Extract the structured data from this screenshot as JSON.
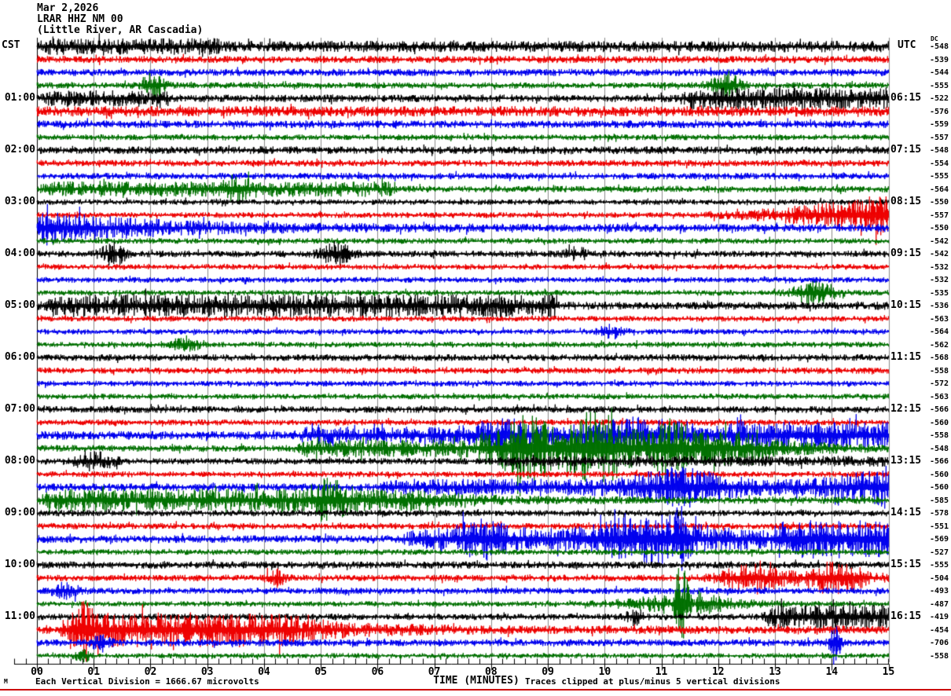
{
  "title": {
    "date": "Mar 2,2026",
    "station": "LRAR HHZ NM 00",
    "location": "(Little River, AR Cascadia)"
  },
  "left_axis": {
    "header": "CST",
    "labels": [
      {
        "text": "01:00",
        "row": 4
      },
      {
        "text": "02:00",
        "row": 8
      },
      {
        "text": "03:00",
        "row": 12
      },
      {
        "text": "04:00",
        "row": 16
      },
      {
        "text": "05:00",
        "row": 20
      },
      {
        "text": "06:00",
        "row": 24
      },
      {
        "text": "07:00",
        "row": 28
      },
      {
        "text": "08:00",
        "row": 32
      },
      {
        "text": "09:00",
        "row": 36
      },
      {
        "text": "10:00",
        "row": 40
      },
      {
        "text": "11:00",
        "row": 44
      }
    ]
  },
  "right_axis": {
    "header": "UTC",
    "dc_header": "DC",
    "labels": [
      {
        "text": "06:15",
        "row": 4
      },
      {
        "text": "07:15",
        "row": 8
      },
      {
        "text": "08:15",
        "row": 12
      },
      {
        "text": "09:15",
        "row": 16
      },
      {
        "text": "10:15",
        "row": 20
      },
      {
        "text": "11:15",
        "row": 24
      },
      {
        "text": "12:15",
        "row": 28
      },
      {
        "text": "13:15",
        "row": 32
      },
      {
        "text": "14:15",
        "row": 36
      },
      {
        "text": "15:15",
        "row": 40
      },
      {
        "text": "16:15",
        "row": 44
      }
    ]
  },
  "footer": {
    "scale_note": "Each Vertical Division = 1666.67 microvolts",
    "xlabel": "TIME (MINUTES)",
    "clip_note": "Traces clipped at plus/minus 5 vertical divisions",
    "watermark": "M"
  },
  "colors": {
    "trace_cycle": [
      "#000000",
      "#ee0000",
      "#0000ee",
      "#007000"
    ],
    "grid": "#8c8c8c",
    "axis": "#000000",
    "accent_line": "#cc0000",
    "text": "#000000",
    "background": "#ffffff"
  },
  "chart_data": {
    "type": "line",
    "subtype": "seismogram-helicorder",
    "title": "LRAR HHZ NM 00 (Little River, AR Cascadia) Mar 2,2026",
    "xlabel": "TIME (MINUTES)",
    "x_range": [
      0,
      15
    ],
    "x_ticks": [
      "00",
      "01",
      "02",
      "03",
      "04",
      "05",
      "06",
      "07",
      "08",
      "09",
      "10",
      "11",
      "12",
      "13",
      "14",
      "15"
    ],
    "minutes_per_row": 15,
    "row_count": 48,
    "start_time_cst": "00:00",
    "start_time_utc": "05:15",
    "clip_divisions": 5,
    "microvolts_per_division": 1666.67,
    "grid": true,
    "rows": [
      {
        "dc": -548,
        "amp": 5.0,
        "events": [
          {
            "k": "step",
            "a": 2.5,
            "s": 0,
            "e": 3.2
          }
        ]
      },
      {
        "dc": -539,
        "amp": 3.2,
        "events": []
      },
      {
        "dc": -544,
        "amp": 3.2,
        "events": []
      },
      {
        "dc": -555,
        "amp": 2.8,
        "events": [
          {
            "k": "burst",
            "a": 10,
            "s": 1.8,
            "e": 2.25
          },
          {
            "k": "burst",
            "a": 11,
            "s": 11.85,
            "e": 12.4
          }
        ]
      },
      {
        "dc": -522,
        "amp": 3.4,
        "events": [
          {
            "k": "step",
            "a": 4,
            "s": 0,
            "e": 2.3
          },
          {
            "k": "step",
            "a": 6.5,
            "s": 11.3,
            "e": 15
          }
        ]
      },
      {
        "dc": -576,
        "amp": 4.6,
        "events": []
      },
      {
        "dc": -559,
        "amp": 3.4,
        "events": []
      },
      {
        "dc": -557,
        "amp": 2.6,
        "events": []
      },
      {
        "dc": -548,
        "amp": 3.4,
        "events": []
      },
      {
        "dc": -554,
        "amp": 2.9,
        "events": []
      },
      {
        "dc": -555,
        "amp": 2.9,
        "events": []
      },
      {
        "dc": -564,
        "amp": 2.9,
        "events": [
          {
            "k": "step",
            "a": 4,
            "s": 0,
            "e": 6.3
          },
          {
            "k": "burst",
            "a": 8,
            "s": 3.25,
            "e": 3.75
          }
        ]
      },
      {
        "dc": -550,
        "amp": 2.5,
        "events": []
      },
      {
        "dc": -557,
        "amp": 2.5,
        "events": [
          {
            "k": "grow",
            "a": 17,
            "s": 11,
            "e": 15
          }
        ]
      },
      {
        "dc": -550,
        "amp": 3.6,
        "events": [
          {
            "k": "decay",
            "a": 13,
            "s": 0,
            "e": 5
          }
        ]
      },
      {
        "dc": -542,
        "amp": 2.5,
        "events": []
      },
      {
        "dc": -542,
        "amp": 2.9,
        "events": [
          {
            "k": "burst",
            "a": 9,
            "s": 1.1,
            "e": 1.6
          },
          {
            "k": "burst",
            "a": 10,
            "s": 4.95,
            "e": 5.55
          },
          {
            "k": "burst",
            "a": 5,
            "s": 9.3,
            "e": 9.7
          }
        ]
      },
      {
        "dc": -532,
        "amp": 2.5,
        "events": []
      },
      {
        "dc": -532,
        "amp": 2.5,
        "events": []
      },
      {
        "dc": -535,
        "amp": 2.5,
        "events": [
          {
            "k": "burst",
            "a": 10,
            "s": 13.3,
            "e": 14.1
          }
        ]
      },
      {
        "dc": -536,
        "amp": 3.6,
        "events": [
          {
            "k": "step",
            "a": 6.5,
            "s": 0,
            "e": 9.2
          }
        ]
      },
      {
        "dc": -563,
        "amp": 2.5,
        "events": []
      },
      {
        "dc": -564,
        "amp": 2.5,
        "events": [
          {
            "k": "burst",
            "a": 5,
            "s": 9.85,
            "e": 10.35
          }
        ]
      },
      {
        "dc": -562,
        "amp": 2.5,
        "events": [
          {
            "k": "burst",
            "a": 7,
            "s": 2.35,
            "e": 2.85
          }
        ]
      },
      {
        "dc": -568,
        "amp": 3.0,
        "events": []
      },
      {
        "dc": -558,
        "amp": 2.8,
        "events": []
      },
      {
        "dc": -572,
        "amp": 2.5,
        "events": []
      },
      {
        "dc": -563,
        "amp": 2.5,
        "events": []
      },
      {
        "dc": -566,
        "amp": 3.0,
        "events": []
      },
      {
        "dc": -560,
        "amp": 2.6,
        "events": []
      },
      {
        "dc": -558,
        "amp": 3.8,
        "events": [
          {
            "k": "step",
            "a": 4,
            "s": 4.5,
            "e": 15
          },
          {
            "k": "burst",
            "a": 9,
            "s": 7.6,
            "e": 8.8
          },
          {
            "k": "burst",
            "a": 9,
            "s": 9.6,
            "e": 11.6
          },
          {
            "k": "step",
            "a": 5,
            "s": 12,
            "e": 15
          }
        ]
      },
      {
        "dc": -548,
        "amp": 3.0,
        "events": [
          {
            "k": "step",
            "a": 5,
            "s": 4.5,
            "e": 7.6
          },
          {
            "k": "step",
            "a": 12,
            "s": 7.6,
            "e": 12.6
          },
          {
            "k": "burst",
            "a": 16,
            "s": 8.2,
            "e": 9.1
          },
          {
            "k": "burst",
            "a": 20,
            "s": 9.3,
            "e": 10.4
          },
          {
            "k": "burst",
            "a": 15,
            "s": 10.8,
            "e": 11.5
          },
          {
            "k": "decay",
            "a": 9,
            "s": 12.6,
            "e": 15
          }
        ]
      },
      {
        "dc": -566,
        "amp": 2.8,
        "events": [
          {
            "k": "burst",
            "a": 7,
            "s": 0.6,
            "e": 1.4
          },
          {
            "k": "step",
            "a": 2,
            "s": 8,
            "e": 15
          }
        ]
      },
      {
        "dc": -560,
        "amp": 2.6,
        "events": []
      },
      {
        "dc": -560,
        "amp": 3.4,
        "events": [
          {
            "k": "step",
            "a": 4,
            "s": 6,
            "e": 15
          },
          {
            "k": "burst",
            "a": 11,
            "s": 10.4,
            "e": 12.3
          },
          {
            "k": "grow",
            "a": 13,
            "s": 13.2,
            "e": 15
          }
        ]
      },
      {
        "dc": -585,
        "amp": 3.2,
        "events": [
          {
            "k": "step",
            "a": 7,
            "s": 0,
            "e": 7
          },
          {
            "k": "burst",
            "a": 12,
            "s": 4.8,
            "e": 5.5
          },
          {
            "k": "decay",
            "a": 5,
            "s": 7,
            "e": 9.5
          }
        ]
      },
      {
        "dc": -578,
        "amp": 2.8,
        "events": []
      },
      {
        "dc": -551,
        "amp": 2.8,
        "events": []
      },
      {
        "dc": -569,
        "amp": 3.4,
        "events": [
          {
            "k": "step",
            "a": 6,
            "s": 6.4,
            "e": 15
          },
          {
            "k": "burst",
            "a": 10,
            "s": 7.3,
            "e": 8.4
          },
          {
            "k": "burst",
            "a": 14,
            "s": 9.8,
            "e": 11.7
          },
          {
            "k": "spike",
            "a": 18,
            "s": 11.15,
            "e": 11.5
          },
          {
            "k": "step",
            "a": 8,
            "s": 12.9,
            "e": 15
          }
        ]
      },
      {
        "dc": -527,
        "amp": 2.5,
        "events": []
      },
      {
        "dc": -555,
        "amp": 3.2,
        "events": []
      },
      {
        "dc": -504,
        "amp": 2.9,
        "events": [
          {
            "k": "burst",
            "a": 6,
            "s": 4.0,
            "e": 4.4
          },
          {
            "k": "burst",
            "a": 12,
            "s": 12.0,
            "e": 13.2
          },
          {
            "k": "burst",
            "a": 13,
            "s": 13.4,
            "e": 14.7
          }
        ]
      },
      {
        "dc": -493,
        "amp": 2.9,
        "events": [
          {
            "k": "burst",
            "a": 6,
            "s": 0.25,
            "e": 0.8
          }
        ]
      },
      {
        "dc": -487,
        "amp": 2.3,
        "events": [
          {
            "k": "grow",
            "a": 7,
            "s": 9.2,
            "e": 11.1
          },
          {
            "k": "spike",
            "a": 34,
            "s": 11.1,
            "e": 11.6
          },
          {
            "k": "decay",
            "a": 12,
            "s": 11.6,
            "e": 13
          }
        ]
      },
      {
        "dc": -419,
        "amp": 2.9,
        "events": [
          {
            "k": "burst",
            "a": 5,
            "s": 10.35,
            "e": 10.75
          },
          {
            "k": "step",
            "a": 8,
            "s": 12.7,
            "e": 15
          }
        ]
      },
      {
        "dc": -454,
        "amp": 3.6,
        "events": [
          {
            "k": "spike",
            "a": 14,
            "s": 0.65,
            "e": 1.05
          },
          {
            "k": "step",
            "a": 12,
            "s": 0.35,
            "e": 4.6
          },
          {
            "k": "decay",
            "a": 7,
            "s": 4.6,
            "e": 8
          }
        ]
      },
      {
        "dc": -706,
        "amp": 3.1,
        "events": [
          {
            "k": "burst",
            "a": 7,
            "s": 0.95,
            "e": 1.3
          },
          {
            "k": "spike",
            "a": 20,
            "s": 13.9,
            "e": 14.2
          }
        ]
      },
      {
        "dc": -558,
        "amp": 2.3,
        "events": [
          {
            "k": "burst",
            "a": 5,
            "s": 0.65,
            "e": 0.95
          }
        ]
      }
    ]
  }
}
